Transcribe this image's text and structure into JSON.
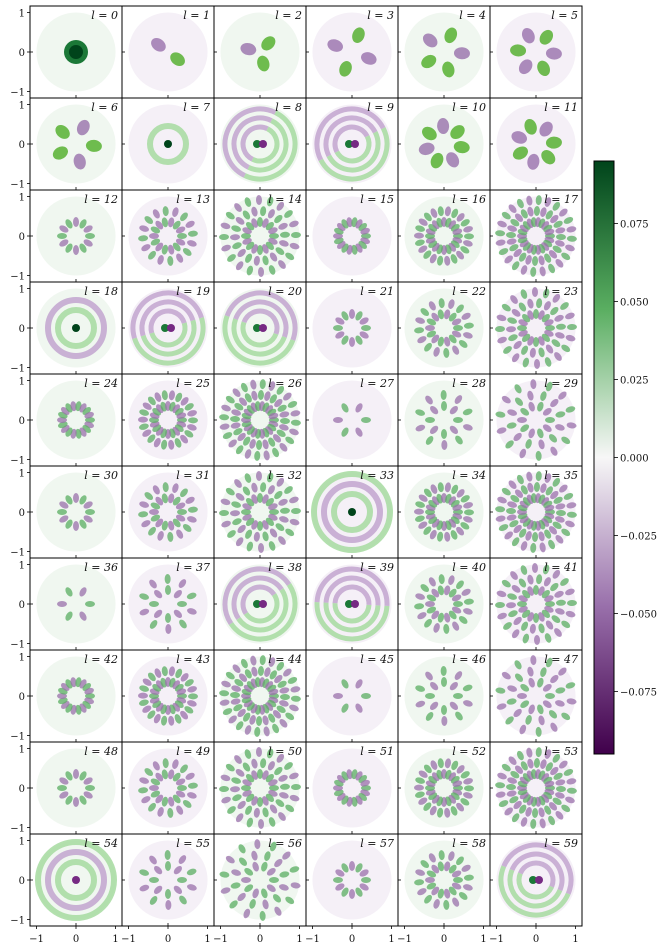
{
  "chart_data": {
    "type": "heatmap",
    "title": "",
    "grid": {
      "rows": 10,
      "cols": 6
    },
    "label_prefix": "l = ",
    "modes": [
      0,
      1,
      2,
      3,
      4,
      5,
      6,
      7,
      8,
      9,
      10,
      11,
      12,
      13,
      14,
      15,
      16,
      17,
      18,
      19,
      20,
      21,
      22,
      23,
      24,
      25,
      26,
      27,
      28,
      29,
      30,
      31,
      32,
      33,
      34,
      35,
      36,
      37,
      38,
      39,
      40,
      41,
      42,
      43,
      44,
      45,
      46,
      47,
      48,
      49,
      50,
      51,
      52,
      53,
      54,
      55,
      56,
      57,
      58,
      59
    ],
    "x_range": [
      -1,
      1
    ],
    "y_range": [
      -1,
      1
    ],
    "x_ticks": [
      "−1",
      "0",
      "1"
    ],
    "y_ticks": [
      "1",
      "0",
      "−1"
    ],
    "colorbar": {
      "min": -0.095,
      "max": 0.095,
      "ticks": [
        0.075,
        0.05,
        0.025,
        0.0,
        -0.025,
        -0.05,
        -0.075
      ],
      "tick_labels": [
        "0.075",
        "0.050",
        "0.025",
        "0.000",
        "−0.025",
        "−0.050",
        "−0.075"
      ],
      "colormap": "PRGn",
      "colors": {
        "negative_end": "#40004b",
        "mid": "#f7f7f7",
        "positive_end": "#00441b"
      }
    }
  }
}
